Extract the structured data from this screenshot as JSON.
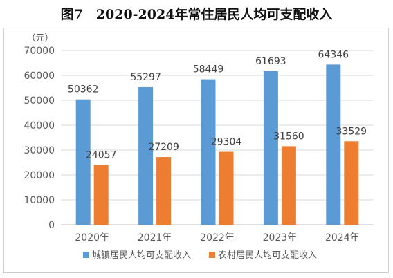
{
  "title": "图7　2020-2024年常住居民人均可支配收入",
  "chart_data": {
    "type": "bar",
    "title": "图7　2020-2024年常住居民人均可支配收入",
    "unit_label": "（元）",
    "categories": [
      "2020年",
      "2021年",
      "2022年",
      "2023年",
      "2024年"
    ],
    "series": [
      {
        "name": "城镇居民人均可支配收入",
        "color": "#5B9BD5",
        "values": [
          50362,
          55297,
          58449,
          61693,
          64346
        ]
      },
      {
        "name": "农村居民人均可支配收入",
        "color": "#ED7D31",
        "values": [
          24057,
          27209,
          29304,
          31560,
          33529
        ]
      }
    ],
    "ylim": [
      0,
      70000
    ],
    "yticks": [
      0,
      10000,
      20000,
      30000,
      40000,
      50000,
      60000,
      70000
    ],
    "grid": true,
    "legend_position": "bottom"
  }
}
